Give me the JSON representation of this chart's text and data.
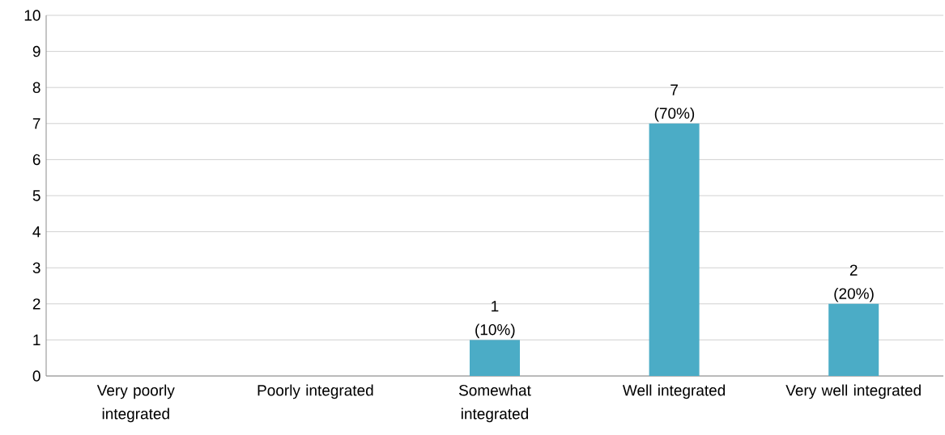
{
  "chart_data": {
    "type": "bar",
    "categories": [
      "Very poorly integrated",
      "Poorly integrated",
      "Somewhat integrated",
      "Well integrated",
      "Very well integrated"
    ],
    "values": [
      0,
      0,
      1,
      7,
      2
    ],
    "value_labels": [
      null,
      null,
      "1 (10%)",
      "7 (70%)",
      "2 (20%)"
    ],
    "color": "#4bacc6",
    "ylim": [
      0,
      10
    ],
    "yticks": [
      0,
      1,
      2,
      3,
      4,
      5,
      6,
      7,
      8,
      9,
      10
    ],
    "grid": "y"
  }
}
